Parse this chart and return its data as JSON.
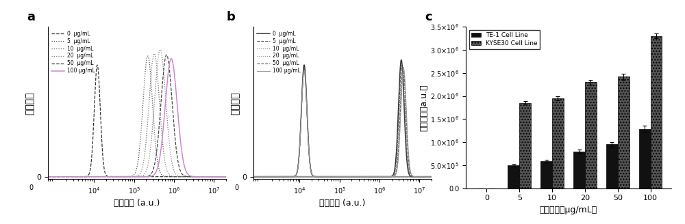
{
  "panel_a_label": "a",
  "panel_b_label": "b",
  "panel_c_label": "c",
  "legend_labels": [
    "0  μg/mL",
    "5  μg/mL",
    "10  μg/mL",
    "20  μg/mL",
    "50  μg/mL",
    "100 μg/mL"
  ],
  "xlabel_flow": "荧光强度 (a.u.)",
  "ylabel_flow": "细胞计数",
  "bar_categories": [
    0,
    5,
    10,
    20,
    50,
    100
  ],
  "bar_xlabel": "药物浓度（μg/mL）",
  "bar_ylabel": "荧光强度（a.u.）",
  "te1_values": [
    0,
    500000.0,
    580000.0,
    800000.0,
    950000.0,
    1280000.0
  ],
  "te1_errors": [
    0,
    30000.0,
    30000.0,
    40000.0,
    50000.0,
    70000.0
  ],
  "kyse_values": [
    0,
    1850000.0,
    1950000.0,
    2300000.0,
    2420000.0,
    3300000.0
  ],
  "kyse_errors": [
    0,
    40000.0,
    40000.0,
    50000.0,
    70000.0,
    50000.0
  ],
  "bar_ylim": [
    0,
    3500000.0
  ],
  "bar_yticks": [
    0,
    500000.0,
    1000000.0,
    1500000.0,
    2000000.0,
    2500000.0,
    3000000.0,
    3500000.0
  ],
  "te1_color": "#111111",
  "kyse_color": "#555555",
  "te1_legend": "TE-1 Cell Line",
  "kyse_legend": "KYSE30 Cell Line",
  "bg_color": "#ffffff"
}
